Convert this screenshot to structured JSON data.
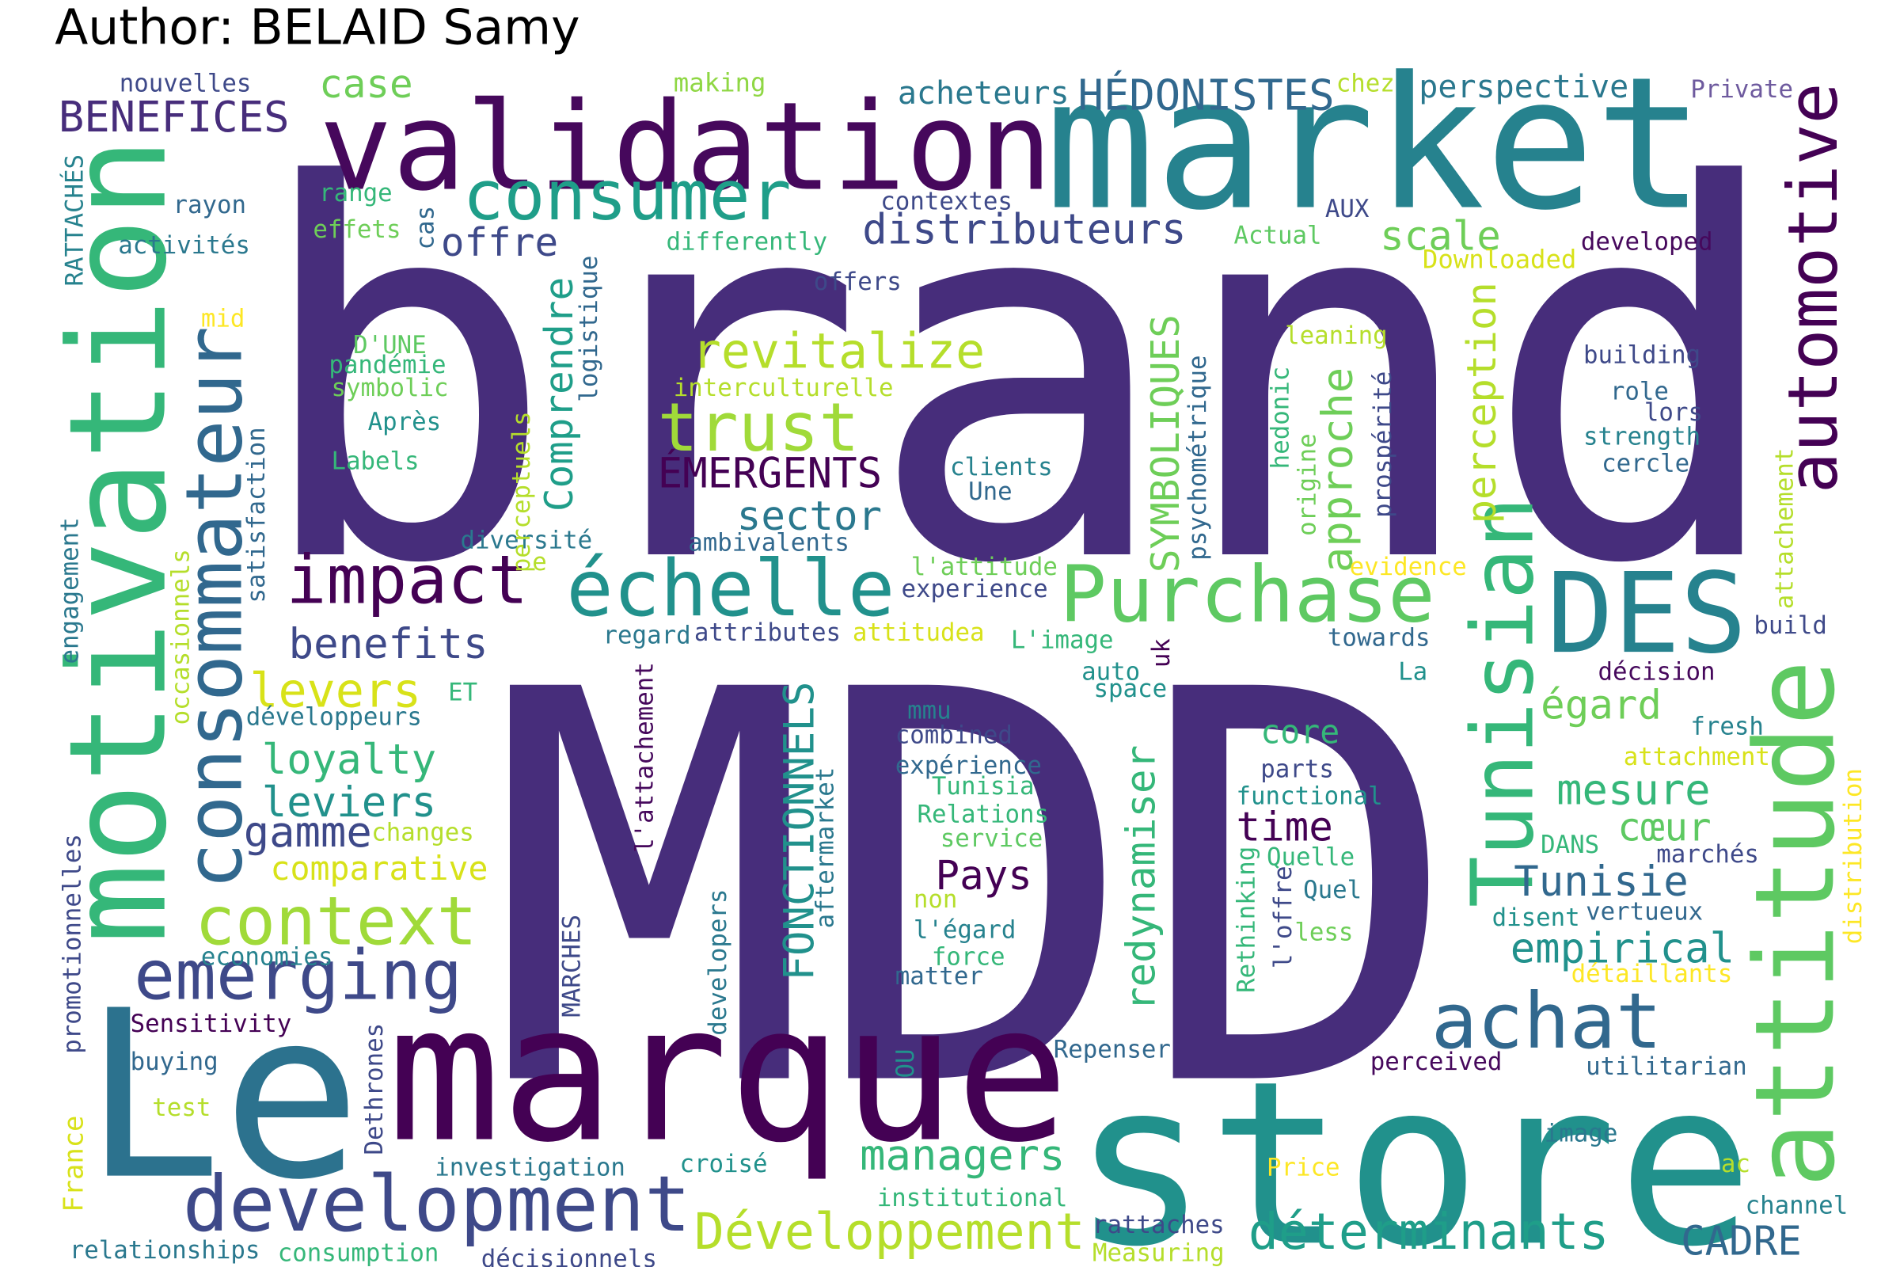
{
  "title": "Author: BELAID Samy",
  "words": [
    "brand",
    "MDD",
    "market",
    "validation",
    "Le",
    "marque",
    "store",
    "motivation",
    "consommateur",
    "development",
    "achat",
    "DES",
    "attitude",
    "Tunisian",
    "automotive",
    "Purchase",
    "échelle",
    "impact",
    "context",
    "emerging",
    "consumer",
    "trust",
    "revitalize",
    "Développement",
    "déterminants",
    "managers",
    "distributeurs",
    "acheteurs",
    "HÉDONISTES",
    "perspective",
    "chez",
    "Private",
    "nouvelles",
    "making",
    "case",
    "BENEFICES",
    "rayon",
    "range",
    "effets",
    "activités",
    "RATTACHÉS",
    "cas",
    "offre",
    "contextes",
    "differently",
    "offers",
    "AUX",
    "scale",
    "Actual",
    "Downloaded",
    "developed",
    "mid",
    "D'UNE",
    "pandémie",
    "symbolic",
    "Après",
    "Labels",
    "logistique",
    "interculturelle",
    "Comprendre",
    "ÉMERGENTS",
    "sector",
    "ambivalents",
    "diversité",
    "satisfaction",
    "perceptuels",
    "e",
    "engagement",
    "occasionnels",
    "benefits",
    "levers",
    "ET",
    "développeurs",
    "loyalty",
    "leviers",
    "gamme",
    "changes",
    "comparative",
    "promotionnelles",
    "economies",
    "Sensitivity",
    "buying",
    "test",
    "France",
    "relationships",
    "consumption",
    "décisionnels",
    "investigation",
    "croisé",
    "Dethrones",
    "l'attachement",
    "aftermarket",
    "MARCHES",
    "developers",
    "OU",
    "FONCTIONNELS",
    "Pays",
    "mmu",
    "combined",
    "expérience",
    "Tunisia",
    "Relations",
    "service",
    "non",
    "l'égard",
    "force",
    "matter",
    "institutional",
    "Repenser",
    "rattaches",
    "Measuring",
    "Price",
    "perceived",
    "utilitarian",
    "image",
    "ac",
    "channel",
    "CADRE",
    "attributes",
    "regard",
    "attitudea",
    "experience",
    "l'attitude",
    "clients",
    "Une",
    "L'image",
    "auto",
    "uk",
    "space",
    "redynamiser",
    "SYMBOLIQUES",
    "psychométrique",
    "hedonic",
    "origine",
    "prospérité",
    "approche",
    "perception",
    "leaning",
    "evidence",
    "towards",
    "La",
    "décision",
    "égard",
    "fresh",
    "attachment",
    "core",
    "parts",
    "functional",
    "time",
    "Quelle",
    "Quel",
    "less",
    "Rethinking",
    "l'offre",
    "mesure",
    "cœur",
    "Tunisie",
    "DANS",
    "marchés",
    "disent",
    "vertueux",
    "empirical",
    "détaillants",
    "distribution",
    "attachement",
    "build",
    "building",
    "role",
    "lors",
    "strength",
    "cercle"
  ]
}
